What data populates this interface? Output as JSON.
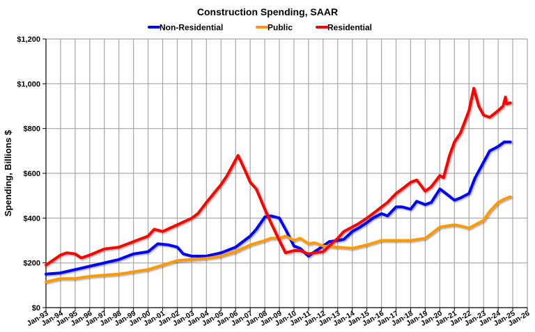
{
  "chart_data": {
    "type": "line",
    "title": "Construction Spending, SAAR",
    "ylabel": "Spending, Billions $",
    "xlabel": "",
    "ylim": [
      0,
      1200
    ],
    "xlim": [
      "1993-01",
      "2026-01"
    ],
    "y_ticks": [
      "$0",
      "$200",
      "$400",
      "$600",
      "$800",
      "$1,000",
      "$1,200"
    ],
    "y_tick_values": [
      0,
      200,
      400,
      600,
      800,
      1000,
      1200
    ],
    "x_ticks": [
      "Jan-93",
      "Jan-94",
      "Jan-95",
      "Jan-96",
      "Jan-97",
      "Jan-98",
      "Jan-99",
      "Jan-00",
      "Jan-01",
      "Jan-02",
      "Jan-03",
      "Jan-04",
      "Jan-05",
      "Jan-06",
      "Jan-07",
      "Jan-08",
      "Jan-09",
      "Jan-10",
      "Jan-11",
      "Jan-12",
      "Jan-13",
      "Jan-14",
      "Jan-15",
      "Jan-16",
      "Jan-17",
      "Jan-18",
      "Jan-19",
      "Jan-20",
      "Jan-21",
      "Jan-22",
      "Jan-23",
      "Jan-24",
      "Jan-25",
      "Jan-26"
    ],
    "grid": true,
    "legend_position": "top",
    "series": [
      {
        "name": "Non-Residential",
        "color": "#0000ff",
        "x": [
          "1993-01",
          "1994-01",
          "1995-01",
          "1996-01",
          "1997-01",
          "1998-01",
          "1999-01",
          "2000-01",
          "2000-09",
          "2001-06",
          "2002-01",
          "2002-06",
          "2003-01",
          "2004-01",
          "2005-01",
          "2006-01",
          "2007-01",
          "2007-06",
          "2008-01",
          "2008-06",
          "2009-01",
          "2009-06",
          "2010-01",
          "2010-06",
          "2011-01",
          "2011-06",
          "2012-01",
          "2012-06",
          "2013-01",
          "2013-06",
          "2014-01",
          "2014-06",
          "2015-01",
          "2015-06",
          "2016-01",
          "2016-06",
          "2017-01",
          "2017-06",
          "2018-01",
          "2018-06",
          "2019-01",
          "2019-06",
          "2020-01",
          "2020-06",
          "2021-01",
          "2021-06",
          "2022-01",
          "2022-06",
          "2023-01",
          "2023-06",
          "2024-01",
          "2024-06",
          "2024-11"
        ],
        "values": [
          150,
          155,
          170,
          185,
          200,
          215,
          240,
          250,
          285,
          280,
          270,
          240,
          230,
          230,
          245,
          270,
          320,
          350,
          405,
          410,
          400,
          350,
          275,
          265,
          230,
          250,
          275,
          295,
          300,
          305,
          340,
          355,
          380,
          400,
          420,
          410,
          450,
          450,
          440,
          475,
          460,
          470,
          530,
          510,
          480,
          490,
          510,
          580,
          650,
          700,
          720,
          740,
          740
        ]
      },
      {
        "name": "Public",
        "color": "#ff9900",
        "x": [
          "1993-01",
          "1994-01",
          "1995-01",
          "1996-01",
          "1997-01",
          "1998-01",
          "1999-01",
          "2000-01",
          "2001-01",
          "2002-01",
          "2003-01",
          "2004-01",
          "2005-01",
          "2006-01",
          "2007-01",
          "2008-01",
          "2008-06",
          "2009-01",
          "2009-06",
          "2010-01",
          "2010-06",
          "2011-01",
          "2011-06",
          "2012-01",
          "2013-01",
          "2014-01",
          "2015-01",
          "2016-01",
          "2017-01",
          "2018-01",
          "2019-01",
          "2019-06",
          "2020-01",
          "2021-01",
          "2021-06",
          "2022-01",
          "2022-06",
          "2023-01",
          "2023-06",
          "2024-01",
          "2024-06",
          "2024-11"
        ],
        "values": [
          115,
          130,
          130,
          140,
          145,
          150,
          160,
          170,
          190,
          210,
          215,
          220,
          230,
          250,
          280,
          300,
          310,
          310,
          320,
          300,
          310,
          285,
          290,
          275,
          270,
          265,
          280,
          300,
          300,
          300,
          310,
          330,
          360,
          370,
          365,
          355,
          370,
          390,
          430,
          470,
          485,
          495
        ]
      },
      {
        "name": "Residential",
        "color": "#ff0000",
        "x": [
          "1993-01",
          "1994-01",
          "1994-06",
          "1995-01",
          "1995-06",
          "1996-01",
          "1997-01",
          "1998-01",
          "1999-01",
          "2000-01",
          "2000-06",
          "2001-01",
          "2002-01",
          "2003-01",
          "2003-06",
          "2004-01",
          "2005-01",
          "2005-06",
          "2006-01",
          "2006-03",
          "2006-09",
          "2007-01",
          "2007-06",
          "2008-01",
          "2008-06",
          "2009-01",
          "2009-06",
          "2010-01",
          "2010-06",
          "2011-01",
          "2011-06",
          "2012-01",
          "2012-06",
          "2013-01",
          "2013-06",
          "2014-01",
          "2014-06",
          "2015-01",
          "2015-06",
          "2016-01",
          "2016-06",
          "2017-01",
          "2017-06",
          "2018-01",
          "2018-06",
          "2019-01",
          "2019-06",
          "2020-01",
          "2020-04",
          "2020-09",
          "2021-01",
          "2021-06",
          "2022-01",
          "2022-05",
          "2022-09",
          "2023-01",
          "2023-06",
          "2024-01",
          "2024-05",
          "2024-07",
          "2024-08",
          "2024-11"
        ],
        "values": [
          190,
          235,
          245,
          240,
          222,
          235,
          262,
          270,
          295,
          320,
          350,
          340,
          370,
          400,
          420,
          470,
          550,
          590,
          660,
          680,
          610,
          560,
          530,
          440,
          380,
          300,
          245,
          255,
          255,
          240,
          245,
          250,
          275,
          310,
          340,
          360,
          375,
          400,
          420,
          450,
          470,
          510,
          530,
          560,
          570,
          520,
          540,
          590,
          580,
          680,
          740,
          780,
          880,
          980,
          900,
          860,
          850,
          880,
          900,
          940,
          910,
          915
        ]
      }
    ]
  }
}
